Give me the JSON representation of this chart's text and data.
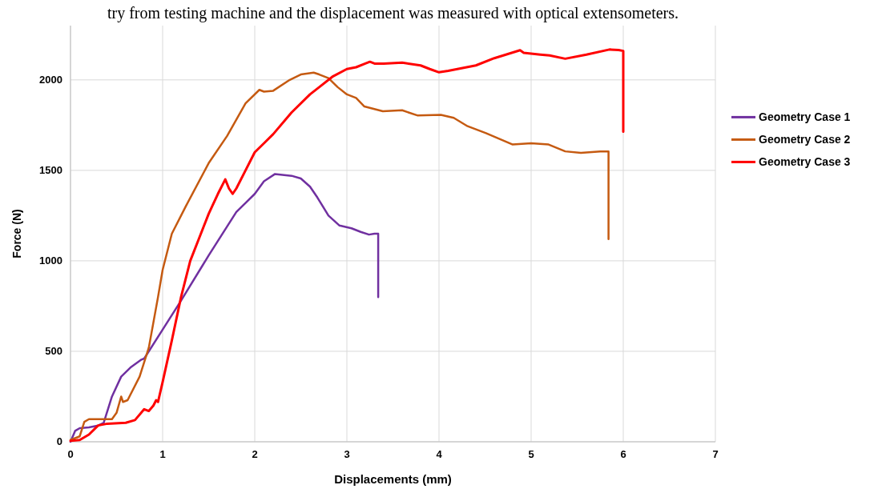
{
  "chart_data": {
    "type": "line",
    "xlabel": "Displacements (mm)",
    "ylabel": "Force (N)",
    "annotations": [
      "try from testing machine and the displacement was measured with optical extensometers."
    ],
    "xlim": [
      0,
      7
    ],
    "xticks": [
      0,
      1,
      2,
      3,
      4,
      5,
      6,
      7
    ],
    "ylim": [
      0,
      2300
    ],
    "yticks": [
      0,
      500,
      1000,
      1500,
      2000
    ],
    "grid": true,
    "legend": "right",
    "marker": "none",
    "line_style": "solid",
    "series": [
      {
        "name": "Geometry Case 1",
        "color": "#7030a0",
        "x": [
          0,
          0.05,
          0.1,
          0.2,
          0.3,
          0.36,
          0.45,
          0.55,
          0.65,
          0.77,
          0.8,
          1.0,
          1.2,
          1.5,
          1.8,
          1.9,
          2.0,
          2.1,
          2.22,
          2.4,
          2.5,
          2.6,
          2.68,
          2.8,
          2.92,
          3.05,
          3.15,
          3.24,
          3.3,
          3.34,
          3.34
        ],
        "values": [
          0,
          60,
          75,
          80,
          90,
          105,
          250,
          360,
          410,
          454,
          460,
          620,
          780,
          1030,
          1270,
          1320,
          1370,
          1440,
          1480,
          1470,
          1455,
          1410,
          1350,
          1250,
          1195,
          1180,
          1160,
          1145,
          1150,
          1150,
          800
        ]
      },
      {
        "name": "Geometry Case 2",
        "color": "#c55a11",
        "x": [
          0,
          0.1,
          0.15,
          0.2,
          0.45,
          0.5,
          0.55,
          0.57,
          0.62,
          0.75,
          0.85,
          0.95,
          1.0,
          1.1,
          1.25,
          1.5,
          1.7,
          1.9,
          2.05,
          2.1,
          2.2,
          2.38,
          2.5,
          2.64,
          2.7,
          2.8,
          2.9,
          3.0,
          3.1,
          3.19,
          3.39,
          3.6,
          3.77,
          4.02,
          4.16,
          4.31,
          4.51,
          4.8,
          5.0,
          5.19,
          5.37,
          5.54,
          5.75,
          5.84,
          5.84
        ],
        "values": [
          10,
          30,
          110,
          125,
          125,
          160,
          250,
          220,
          230,
          360,
          520,
          800,
          950,
          1150,
          1300,
          1540,
          1690,
          1870,
          1945,
          1935,
          1940,
          2000,
          2030,
          2040,
          2030,
          2010,
          1960,
          1920,
          1900,
          1853,
          1827,
          1832,
          1803,
          1807,
          1790,
          1744,
          1706,
          1643,
          1650,
          1643,
          1605,
          1597,
          1605,
          1605,
          1120
        ]
      },
      {
        "name": "Geometry Case 3",
        "color": "#ff0000",
        "x": [
          0,
          0.1,
          0.2,
          0.3,
          0.4,
          0.6,
          0.7,
          0.8,
          0.85,
          0.9,
          0.93,
          0.95,
          1.0,
          1.1,
          1.2,
          1.3,
          1.4,
          1.5,
          1.6,
          1.68,
          1.72,
          1.76,
          1.8,
          1.9,
          2.0,
          2.1,
          2.2,
          2.4,
          2.6,
          2.7,
          2.85,
          3.0,
          3.1,
          3.2,
          3.25,
          3.3,
          3.4,
          3.6,
          3.8,
          3.9,
          4.0,
          4.1,
          4.4,
          4.6,
          4.88,
          4.92,
          5.1,
          5.2,
          5.37,
          5.6,
          5.85,
          5.95,
          6.0,
          6.0
        ],
        "values": [
          5,
          10,
          40,
          90,
          100,
          105,
          120,
          180,
          170,
          200,
          230,
          220,
          330,
          560,
          800,
          1000,
          1130,
          1260,
          1370,
          1450,
          1400,
          1370,
          1400,
          1500,
          1600,
          1650,
          1700,
          1820,
          1920,
          1960,
          2020,
          2060,
          2070,
          2090,
          2100,
          2090,
          2090,
          2095,
          2080,
          2060,
          2042,
          2050,
          2080,
          2120,
          2164,
          2150,
          2140,
          2135,
          2117,
          2140,
          2168,
          2165,
          2160,
          1714
        ]
      }
    ]
  }
}
